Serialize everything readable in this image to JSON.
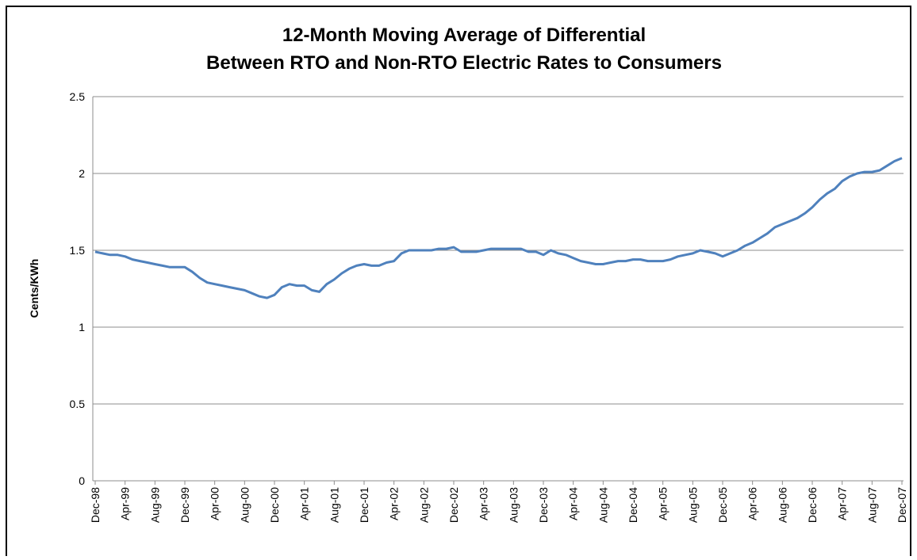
{
  "chart_data": {
    "type": "line",
    "title": [
      "12-Month Moving Average of Differential",
      "Between RTO and Non-RTO Electric Rates to Consumers"
    ],
    "y_label": "Cents/KWh",
    "categories": [
      "Dec-98",
      null,
      null,
      null,
      "Apr-99",
      null,
      null,
      null,
      "Aug-99",
      null,
      null,
      null,
      "Dec-99",
      null,
      null,
      null,
      "Apr-00",
      null,
      null,
      null,
      "Aug-00",
      null,
      null,
      null,
      "Dec-00",
      null,
      null,
      null,
      "Apr-01",
      null,
      null,
      null,
      "Aug-01",
      null,
      null,
      null,
      "Dec-01",
      null,
      null,
      null,
      "Apr-02",
      null,
      null,
      null,
      "Aug-02",
      null,
      null,
      null,
      "Dec-02",
      null,
      null,
      null,
      "Apr-03",
      null,
      null,
      null,
      "Aug-03",
      null,
      null,
      null,
      "Dec-03",
      null,
      null,
      null,
      "Apr-04",
      null,
      null,
      null,
      "Aug-04",
      null,
      null,
      null,
      "Dec-04",
      null,
      null,
      null,
      "Apr-05",
      null,
      null,
      null,
      "Aug-05",
      null,
      null,
      null,
      "Dec-05",
      null,
      null,
      null,
      "Apr-06",
      null,
      null,
      null,
      "Aug-06",
      null,
      null,
      null,
      "Dec-06",
      null,
      null,
      null,
      "Apr-07",
      null,
      null,
      null,
      "Aug-07",
      null,
      null,
      null,
      "Dec-07"
    ],
    "values": [
      1.49,
      1.48,
      1.47,
      1.47,
      1.46,
      1.44,
      1.43,
      1.42,
      1.41,
      1.4,
      1.39,
      1.39,
      1.39,
      1.36,
      1.32,
      1.29,
      1.28,
      1.27,
      1.26,
      1.25,
      1.24,
      1.22,
      1.2,
      1.19,
      1.21,
      1.26,
      1.28,
      1.27,
      1.27,
      1.24,
      1.23,
      1.28,
      1.31,
      1.35,
      1.38,
      1.4,
      1.41,
      1.4,
      1.4,
      1.42,
      1.43,
      1.48,
      1.5,
      1.5,
      1.5,
      1.5,
      1.51,
      1.51,
      1.52,
      1.49,
      1.49,
      1.49,
      1.5,
      1.51,
      1.51,
      1.51,
      1.51,
      1.51,
      1.49,
      1.49,
      1.47,
      1.5,
      1.48,
      1.47,
      1.45,
      1.43,
      1.42,
      1.41,
      1.41,
      1.42,
      1.43,
      1.43,
      1.44,
      1.44,
      1.43,
      1.43,
      1.43,
      1.44,
      1.46,
      1.47,
      1.48,
      1.5,
      1.49,
      1.48,
      1.46,
      1.48,
      1.5,
      1.53,
      1.55,
      1.58,
      1.61,
      1.65,
      1.67,
      1.69,
      1.71,
      1.74,
      1.78,
      1.83,
      1.87,
      1.9,
      1.95,
      1.98,
      2.0,
      2.01,
      2.01,
      2.02,
      2.05,
      2.08,
      2.1
    ],
    "color": "#4f81bd",
    "ylim": [
      0,
      2.5
    ],
    "yticks": [
      0,
      0.5,
      1,
      1.5,
      2,
      2.5
    ],
    "grid": true
  }
}
